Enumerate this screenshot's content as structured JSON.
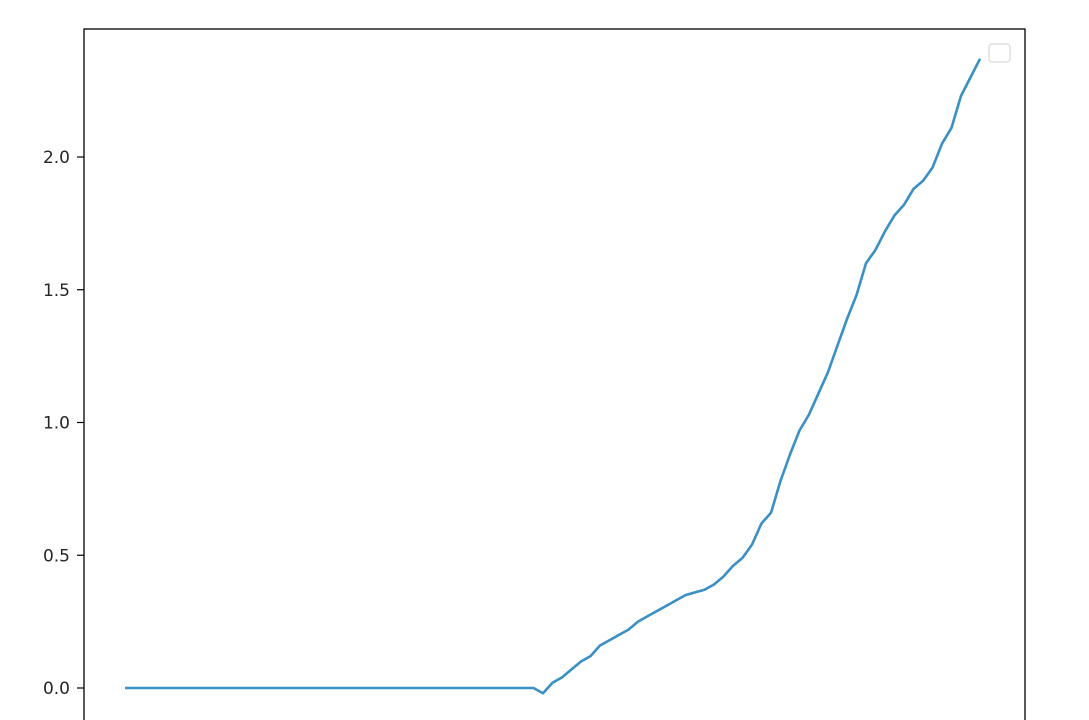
{
  "chart_data": {
    "type": "line",
    "title": "",
    "xlabel": "",
    "ylabel": "",
    "ylim": [
      -0.16,
      2.48
    ],
    "yticks": [
      0.0,
      0.5,
      1.0,
      1.5,
      2.0
    ],
    "ytick_labels": [
      "0.0",
      "0.5",
      "1.0",
      "1.5",
      "2.0"
    ],
    "grid": false,
    "legend": {
      "placement": "top-right",
      "entries": []
    },
    "series": [
      {
        "color": "#3a8fc5",
        "values": [
          0,
          0,
          0,
          0,
          0,
          0,
          0,
          0,
          0,
          0,
          0,
          0,
          0,
          0,
          0,
          0,
          0,
          0,
          0,
          0,
          0,
          0,
          0,
          0,
          0,
          0,
          0,
          0,
          0,
          0,
          0,
          0,
          0,
          0,
          0,
          0,
          0,
          0,
          0,
          0,
          0,
          0,
          0,
          0,
          -0.02,
          0.02,
          0.04,
          0.07,
          0.1,
          0.12,
          0.16,
          0.18,
          0.2,
          0.22,
          0.25,
          0.27,
          0.29,
          0.31,
          0.33,
          0.35,
          0.36,
          0.37,
          0.39,
          0.42,
          0.46,
          0.49,
          0.54,
          0.62,
          0.66,
          0.78,
          0.88,
          0.97,
          1.03,
          1.11,
          1.19,
          1.29,
          1.39,
          1.48,
          1.6,
          1.65,
          1.72,
          1.78,
          1.82,
          1.88,
          1.91,
          1.96,
          2.05,
          2.11,
          2.23,
          2.3,
          2.37
        ]
      }
    ]
  }
}
